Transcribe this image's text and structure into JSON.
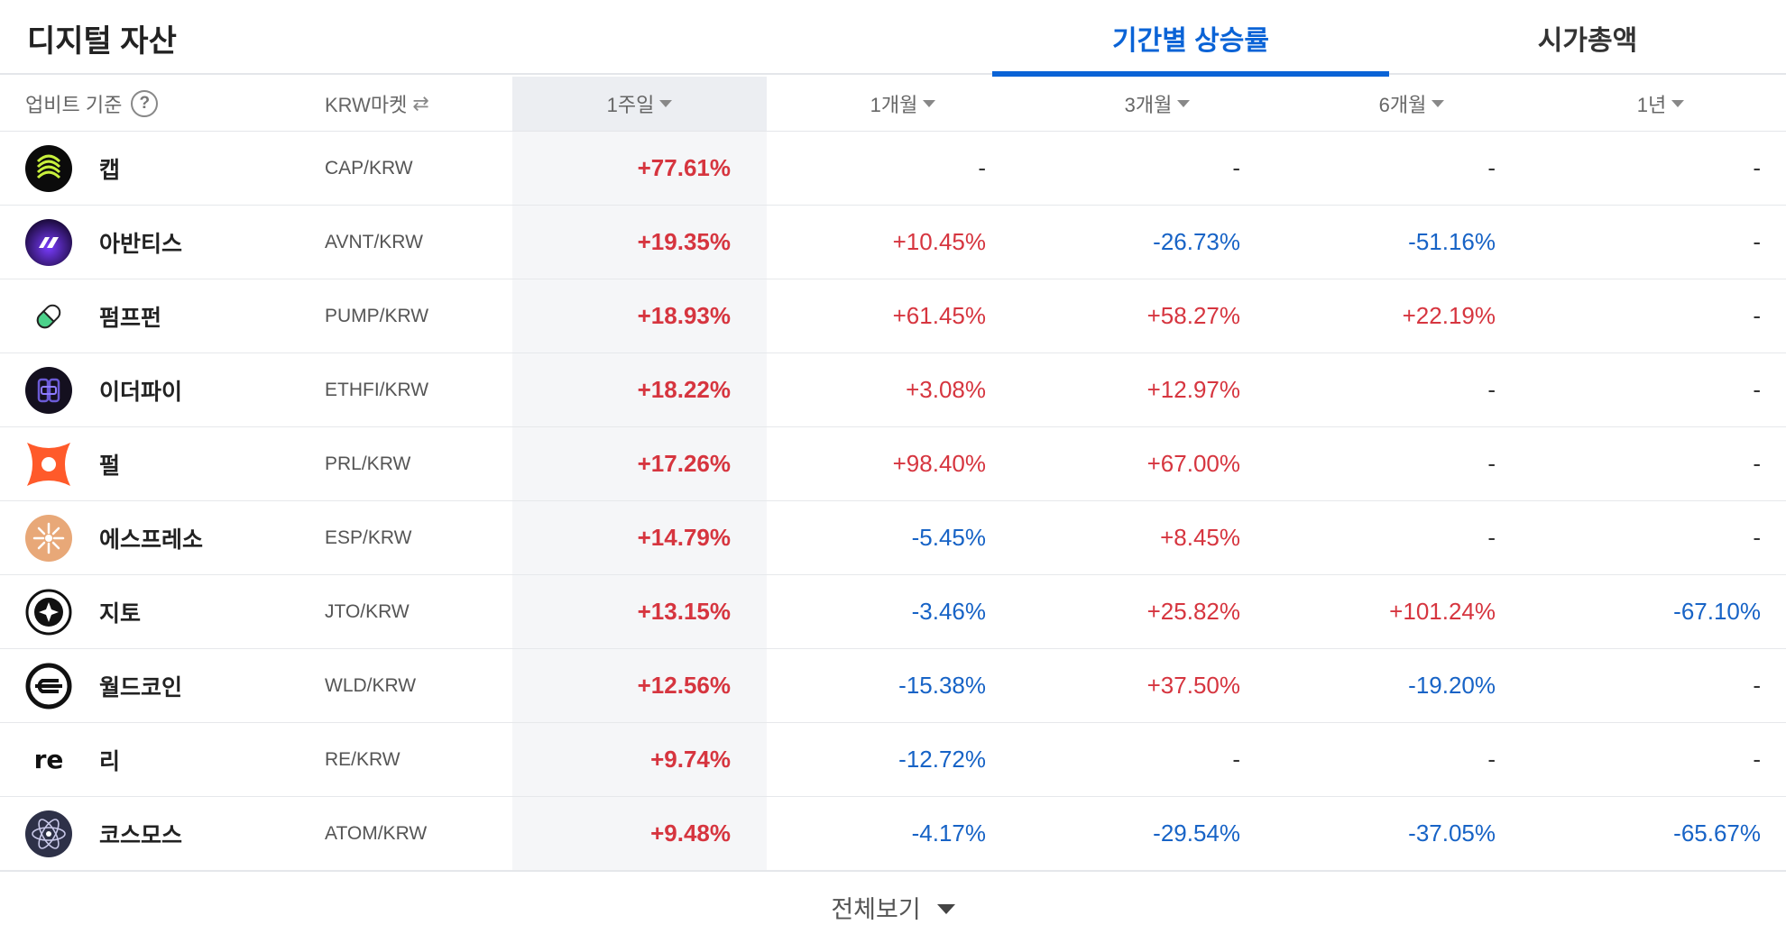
{
  "page_title": "디지털 자산",
  "tabs": [
    {
      "label": "기간별 상승률",
      "active": true
    },
    {
      "label": "시가총액",
      "active": false
    }
  ],
  "header": {
    "basis_label": "업비트 기준",
    "help_glyph": "?",
    "market_label": "KRW마켓",
    "swap_glyph": "⇄",
    "periods": [
      "1주일",
      "1개월",
      "3개월",
      "6개월",
      "1년"
    ]
  },
  "colors": {
    "up": "#d6353f",
    "down": "#1763c6",
    "accent": "#0a63d6"
  },
  "rows": [
    {
      "name": "캡",
      "pair": "CAP/KRW",
      "icon": "cap-icon",
      "values": [
        "+77.61%",
        "-",
        "-",
        "-",
        "-"
      ]
    },
    {
      "name": "아반티스",
      "pair": "AVNT/KRW",
      "icon": "avantis-icon",
      "values": [
        "+19.35%",
        "+10.45%",
        "-26.73%",
        "-51.16%",
        "-"
      ]
    },
    {
      "name": "펌프펀",
      "pair": "PUMP/KRW",
      "icon": "pill-icon",
      "values": [
        "+18.93%",
        "+61.45%",
        "+58.27%",
        "+22.19%",
        "-"
      ]
    },
    {
      "name": "이더파이",
      "pair": "ETHFI/KRW",
      "icon": "etherfi-icon",
      "values": [
        "+18.22%",
        "+3.08%",
        "+12.97%",
        "-",
        "-"
      ]
    },
    {
      "name": "펄",
      "pair": "PRL/KRW",
      "icon": "perle-icon",
      "values": [
        "+17.26%",
        "+98.40%",
        "+67.00%",
        "-",
        "-"
      ]
    },
    {
      "name": "에스프레소",
      "pair": "ESP/KRW",
      "icon": "espresso-icon",
      "values": [
        "+14.79%",
        "-5.45%",
        "+8.45%",
        "-",
        "-"
      ]
    },
    {
      "name": "지토",
      "pair": "JTO/KRW",
      "icon": "jito-icon",
      "values": [
        "+13.15%",
        "-3.46%",
        "+25.82%",
        "+101.24%",
        "-67.10%"
      ]
    },
    {
      "name": "월드코인",
      "pair": "WLD/KRW",
      "icon": "worldcoin-icon",
      "values": [
        "+12.56%",
        "-15.38%",
        "+37.50%",
        "-19.20%",
        "-"
      ]
    },
    {
      "name": "리",
      "pair": "RE/KRW",
      "icon": "re-icon",
      "logo_text": "re",
      "values": [
        "+9.74%",
        "-12.72%",
        "-",
        "-",
        "-"
      ]
    },
    {
      "name": "코스모스",
      "pair": "ATOM/KRW",
      "icon": "cosmos-icon",
      "values": [
        "+9.48%",
        "-4.17%",
        "-29.54%",
        "-37.05%",
        "-65.67%"
      ]
    }
  ],
  "footer": {
    "label": "전체보기"
  }
}
